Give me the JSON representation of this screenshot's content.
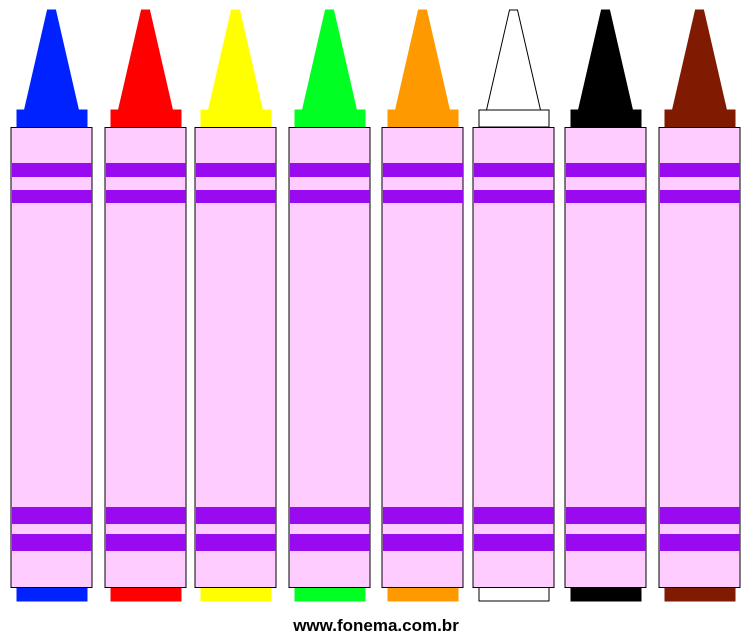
{
  "footer": {
    "text": "www.fonema.com.br"
  }
}
